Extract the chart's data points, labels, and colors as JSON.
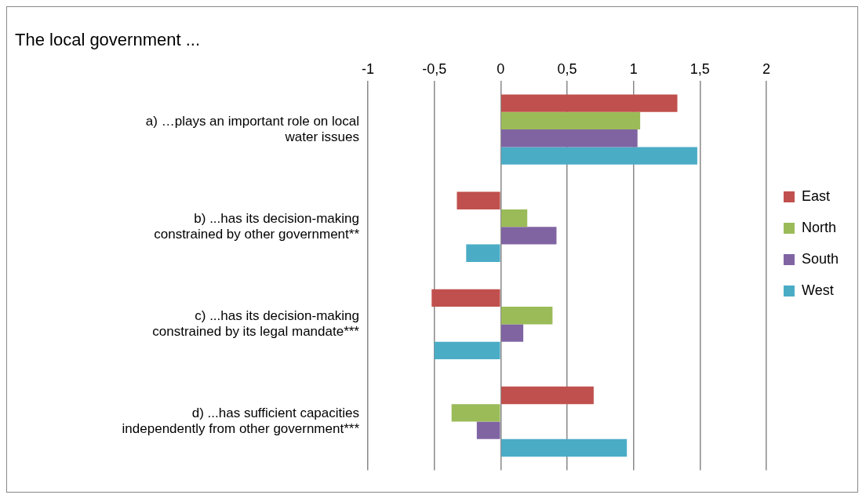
{
  "chart_data": {
    "type": "bar",
    "orientation": "horizontal",
    "title": "The local government ...",
    "categories": [
      "a) …plays an important role on local water issues",
      "b) ...has its decision-making constrained by other government**",
      "c) ...has its decision-making constrained by its legal mandate***",
      "d) ...has sufficient capacities independently from other government***"
    ],
    "series": [
      {
        "name": "East",
        "color": "#c0504d",
        "values": [
          1.33,
          -0.33,
          -0.52,
          0.7
        ]
      },
      {
        "name": "North",
        "color": "#9bbb59",
        "values": [
          1.05,
          0.2,
          0.39,
          -0.37
        ]
      },
      {
        "name": "South",
        "color": "#8064a2",
        "values": [
          1.03,
          0.42,
          0.17,
          -0.18
        ]
      },
      {
        "name": "West",
        "color": "#4bacc6",
        "values": [
          1.48,
          -0.26,
          -0.5,
          0.95
        ]
      }
    ],
    "xlim": [
      -1,
      2
    ],
    "xticks": [
      {
        "value": -1,
        "label": "-1"
      },
      {
        "value": -0.5,
        "label": "-0,5"
      },
      {
        "value": 0,
        "label": "0"
      },
      {
        "value": 0.5,
        "label": "0,5"
      },
      {
        "value": 1,
        "label": "1"
      },
      {
        "value": 1.5,
        "label": "1,5"
      },
      {
        "value": 2,
        "label": "2"
      }
    ],
    "grid": "x",
    "legend": "right"
  }
}
